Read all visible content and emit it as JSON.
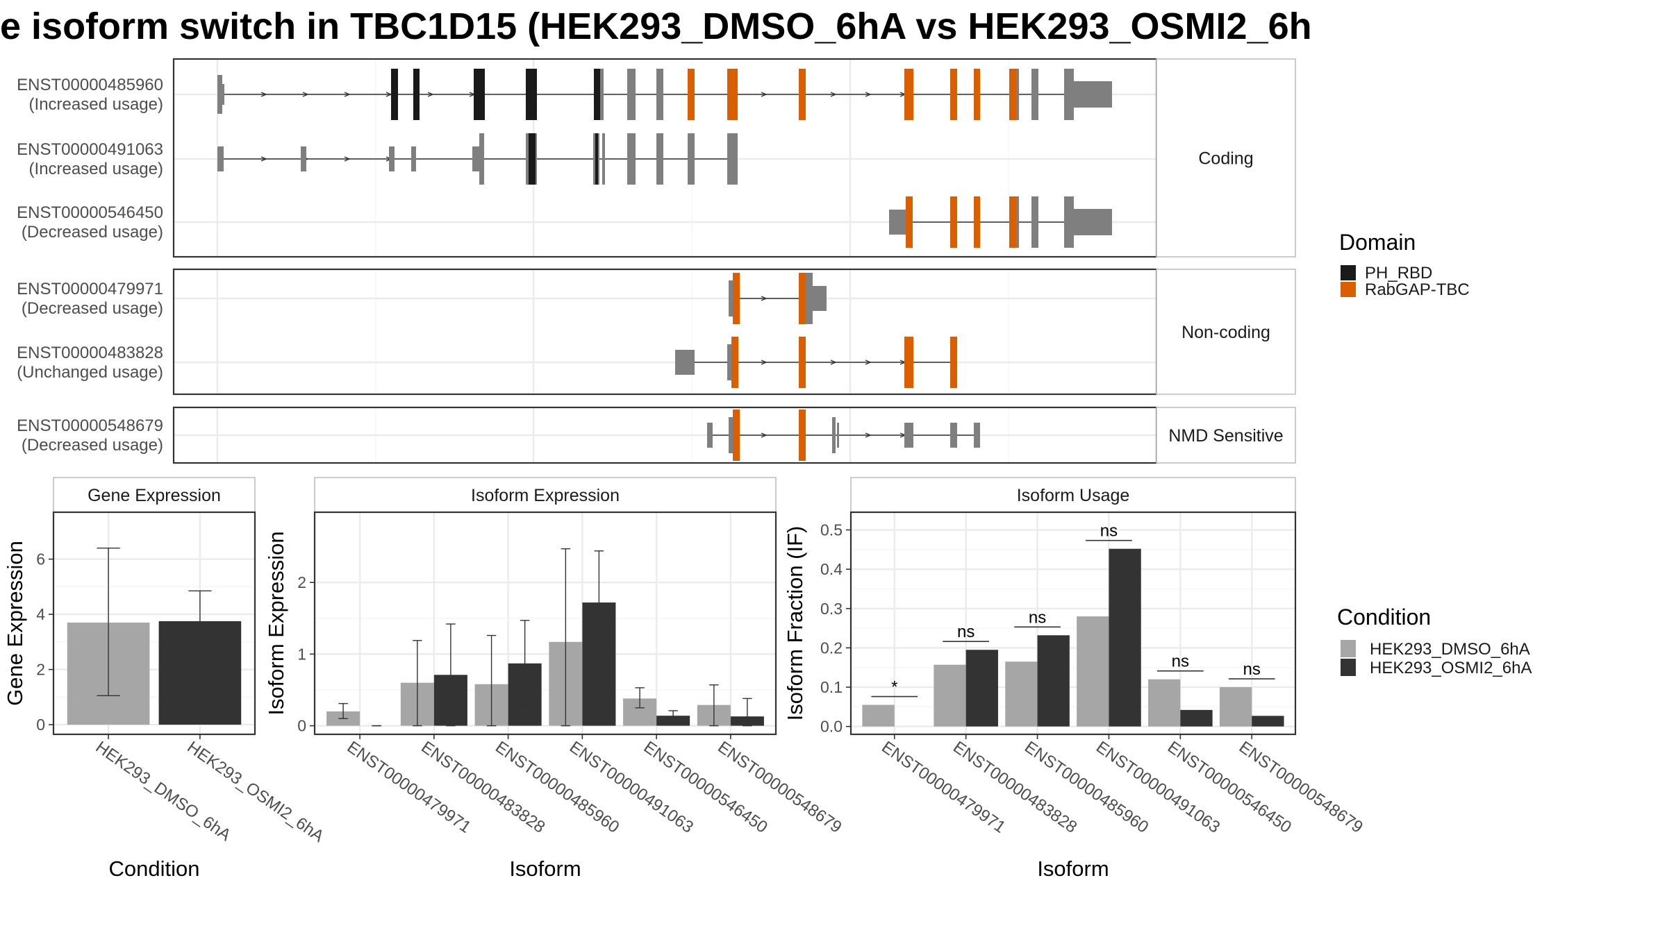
{
  "title": "e isoform switch in TBC1D15 (HEK293_DMSO_6hA vs HEK293_OSMI2_6h",
  "colors": {
    "ph_rbd": "#1a1a1a",
    "rabgap_tbc": "#d95f02",
    "utr": "#7f7f7f",
    "cond1": "#a6a6a6",
    "cond2": "#333333",
    "panel_border": "#333333",
    "strip_bg": "#ffffff",
    "grid": "#ebebeb"
  },
  "structure": {
    "groups": [
      {
        "label": "Coding",
        "isoforms": [
          {
            "id": "ENST00000485960",
            "usage": "(Increased usage)"
          },
          {
            "id": "ENST00000491063",
            "usage": "(Increased usage)"
          },
          {
            "id": "ENST00000546450",
            "usage": "(Decreased usage)"
          }
        ]
      },
      {
        "label": "Non-coding",
        "isoforms": [
          {
            "id": "ENST00000479971",
            "usage": "(Decreased usage)"
          },
          {
            "id": "ENST00000483828",
            "usage": "(Unchanged usage)"
          }
        ]
      },
      {
        "label": "NMD Sensitive",
        "isoforms": [
          {
            "id": "ENST00000548679",
            "usage": "(Decreased usage)"
          }
        ]
      }
    ],
    "domain_legend": {
      "title": "Domain",
      "entries": [
        "PH_RBD",
        "RabGAP-TBC"
      ]
    }
  },
  "chart_data": [
    {
      "type": "bar",
      "title": "Gene Expression",
      "xlabel": "Condition",
      "ylabel": "Gene Expression",
      "categories": [
        "HEK293_DMSO_6hA",
        "HEK293_OSMI2_6hA"
      ],
      "values": [
        3.7,
        3.75
      ],
      "err_low": [
        1.05,
        2.65
      ],
      "err_high": [
        6.4,
        4.85
      ],
      "ylim": [
        -0.35,
        7.7
      ],
      "yticks": [
        0,
        2,
        4,
        6
      ],
      "ytick_labels": [
        "0",
        "2",
        "4",
        "6"
      ]
    },
    {
      "type": "bar",
      "title": "Isoform Expression",
      "xlabel": "Isoform",
      "ylabel": "Isoform Expression",
      "categories": [
        "ENST00000479971",
        "ENST00000483828",
        "ENST00000485960",
        "ENST00000491063",
        "ENST00000546450",
        "ENST00000548679"
      ],
      "series": [
        {
          "name": "HEK293_DMSO_6hA",
          "values": [
            0.2,
            0.6,
            0.58,
            1.17,
            0.38,
            0.29
          ],
          "err_low": [
            0.1,
            0.0,
            0.0,
            0.0,
            0.25,
            0.0
          ],
          "err_high": [
            0.31,
            1.19,
            1.26,
            2.47,
            0.53,
            0.57
          ]
        },
        {
          "name": "HEK293_OSMI2_6hA",
          "values": [
            0.0,
            0.71,
            0.87,
            1.72,
            0.14,
            0.13
          ],
          "err_low": [
            0.0,
            0.0,
            0.27,
            0.96,
            0.08,
            0.0
          ],
          "err_high": [
            0.0,
            1.42,
            1.47,
            2.44,
            0.21,
            0.38
          ]
        }
      ],
      "ylim": [
        -0.12,
        2.98
      ],
      "yticks": [
        0,
        1,
        2
      ],
      "ytick_labels": [
        "0",
        "1",
        "2"
      ]
    },
    {
      "type": "bar",
      "title": "Isoform Usage",
      "xlabel": "Isoform",
      "ylabel": "Isoform Fraction (IF)",
      "categories": [
        "ENST00000479971",
        "ENST00000483828",
        "ENST00000485960",
        "ENST00000491063",
        "ENST00000546450",
        "ENST00000548679"
      ],
      "series": [
        {
          "name": "HEK293_DMSO_6hA",
          "values": [
            0.055,
            0.157,
            0.165,
            0.28,
            0.12,
            0.1
          ]
        },
        {
          "name": "HEK293_OSMI2_6hA",
          "values": [
            0.0,
            0.195,
            0.232,
            0.452,
            0.042,
            0.027
          ]
        }
      ],
      "significance": [
        "*",
        "ns",
        "ns",
        "ns",
        "ns",
        "ns"
      ],
      "ylim": [
        -0.02,
        0.545
      ],
      "yticks": [
        0.0,
        0.1,
        0.2,
        0.3,
        0.4,
        0.5
      ],
      "ytick_labels": [
        "0.0",
        "0.1",
        "0.2",
        "0.3",
        "0.4",
        "0.5"
      ]
    }
  ],
  "condition_legend": {
    "title": "Condition",
    "entries": [
      "HEK293_DMSO_6hA",
      "HEK293_OSMI2_6hA"
    ]
  }
}
